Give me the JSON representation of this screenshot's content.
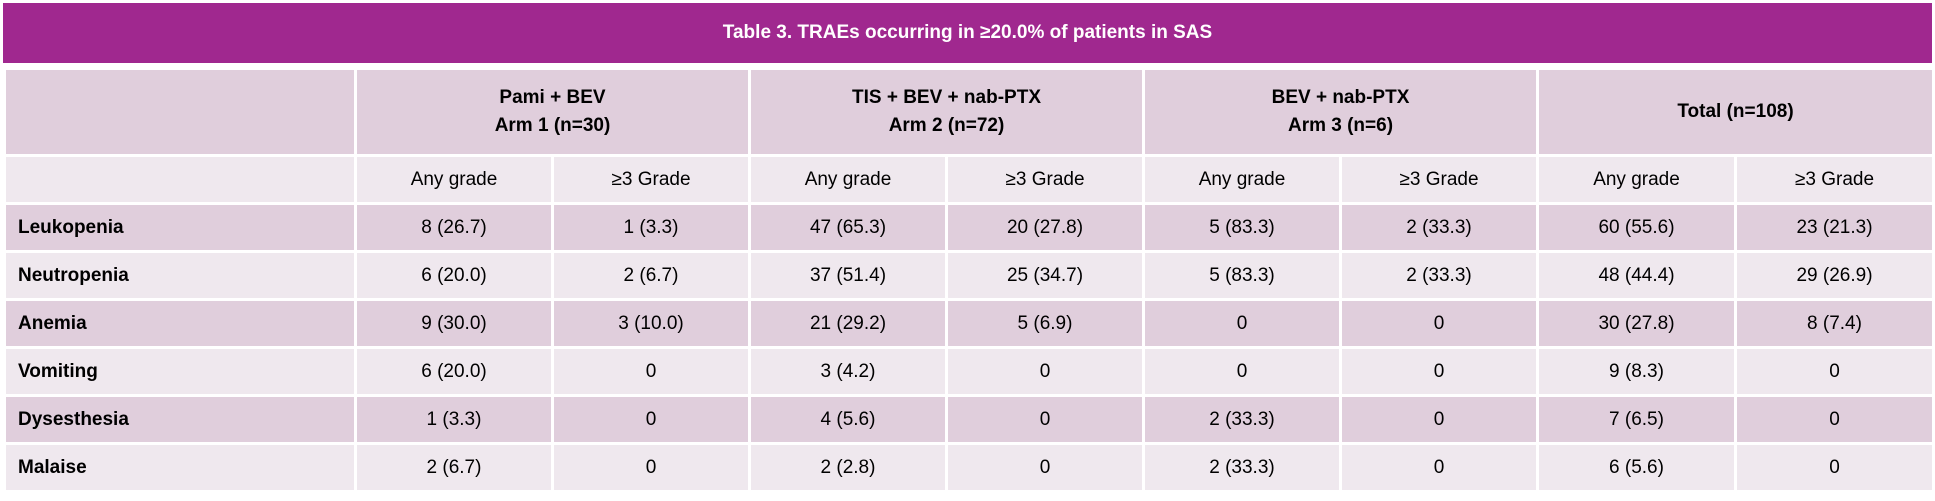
{
  "title": "Table 3. TRAEs  occurring in ≥20.0% of patients in SAS",
  "arms": [
    {
      "line1": "Pami + BEV",
      "line2": "Arm 1 (n=30)"
    },
    {
      "line1": "TIS + BEV + nab-PTX",
      "line2": "Arm 2 (n=72)"
    },
    {
      "line1": "BEV + nab-PTX",
      "line2": "Arm 3 (n=6)"
    },
    {
      "line1": "Total (n=108)",
      "line2": ""
    }
  ],
  "subheaders": [
    "Any grade",
    "≥3 Grade",
    "Any grade",
    "≥3 Grade",
    "Any grade",
    "≥3 Grade",
    "Any grade",
    "≥3 Grade"
  ],
  "rows": [
    {
      "label": "Leukopenia",
      "cells": [
        "8 (26.7)",
        "1 (3.3)",
        "47 (65.3)",
        "20 (27.8)",
        "5 (83.3)",
        "2 (33.3)",
        "60 (55.6)",
        "23 (21.3)"
      ]
    },
    {
      "label": "Neutropenia",
      "cells": [
        "6 (20.0)",
        "2 (6.7)",
        "37 (51.4)",
        "25 (34.7)",
        "5 (83.3)",
        "2 (33.3)",
        "48 (44.4)",
        "29 (26.9)"
      ]
    },
    {
      "label": "Anemia",
      "cells": [
        "9 (30.0)",
        "3 (10.0)",
        "21 (29.2)",
        "5 (6.9)",
        "0",
        "0",
        "30 (27.8)",
        "8 (7.4)"
      ]
    },
    {
      "label": "Vomiting",
      "cells": [
        "6 (20.0)",
        "0",
        "3 (4.2)",
        "0",
        "0",
        "0",
        "9  (8.3)",
        "0"
      ]
    },
    {
      "label": "Dysesthesia",
      "cells": [
        "1 (3.3)",
        "0",
        "4 (5.6)",
        "0",
        "2 (33.3)",
        "0",
        "7 (6.5)",
        "0"
      ]
    },
    {
      "label": "Malaise",
      "cells": [
        "2 (6.7)",
        "0",
        "2 (2.8)",
        "0",
        "2 (33.3)",
        "0",
        "6 (5.6)",
        "0"
      ]
    }
  ]
}
